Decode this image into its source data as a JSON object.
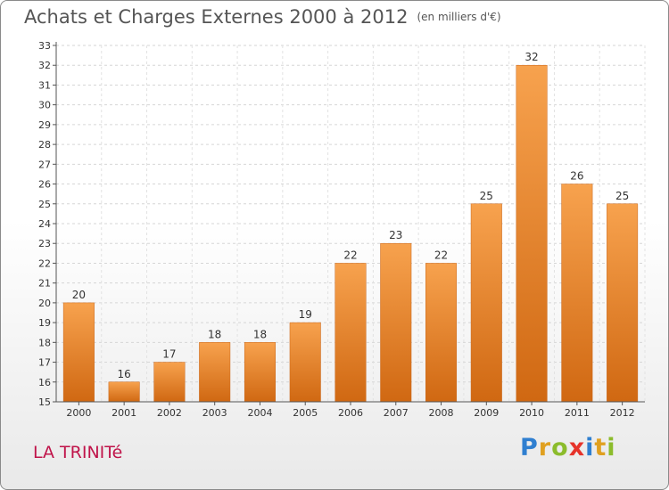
{
  "header": {
    "title": "Achats et Charges Externes 2000 à 2012",
    "subtitle": "(en milliers d'€)"
  },
  "footer": {
    "commune": "LA TRINITé",
    "logo_text": "Proxiti"
  },
  "chart_data": {
    "type": "bar",
    "title": "Achats et Charges Externes 2000 à 2012",
    "subtitle": "(en milliers d'€)",
    "categories": [
      "2000",
      "2001",
      "2002",
      "2003",
      "2004",
      "2005",
      "2006",
      "2007",
      "2008",
      "2009",
      "2010",
      "2011",
      "2012"
    ],
    "values": [
      20,
      16,
      17,
      18,
      18,
      19,
      22,
      23,
      22,
      25,
      32,
      26,
      25
    ],
    "ylim": [
      15,
      33
    ],
    "yticks": [
      15,
      16,
      17,
      18,
      19,
      20,
      21,
      22,
      23,
      24,
      25,
      26,
      27,
      28,
      29,
      30,
      31,
      32,
      33
    ],
    "grid": true,
    "bar_color": "#f0953f",
    "bar_color_dark": "#d46d14"
  }
}
